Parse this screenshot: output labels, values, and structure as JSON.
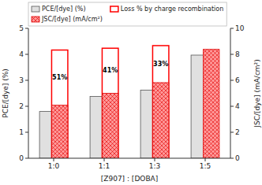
{
  "chart_data": {
    "type": "bar",
    "categories": [
      "1:0",
      "1:1",
      "1:3",
      "1:5"
    ],
    "series": [
      {
        "name": "PCE/[dye] (%)",
        "color": "#e0e0e0",
        "values": [
          1.8,
          2.38,
          2.62,
          3.97
        ]
      },
      {
        "name": "JSC/[dye] (mA/cm²)",
        "color": "#ff9999",
        "axis": "y2",
        "values": [
          4.08,
          5.0,
          5.82,
          8.38
        ]
      },
      {
        "name": "Loss % by charge recombination",
        "color": "#ff0000",
        "axis": "y2",
        "values": [
          8.33,
          8.47,
          8.67,
          null
        ],
        "loss_percents": [
          {
            "value": 51,
            "label": "51%"
          },
          {
            "value": 41,
            "label": "41%"
          },
          {
            "value": 33,
            "label": "33%"
          },
          null
        ]
      }
    ],
    "xlabel": "[Z907] : [DOBA]",
    "ylabel": "PCE/[dye] (%)",
    "y2label": "JSC/[dye] (mA/cm²)",
    "ylim": [
      0,
      5
    ],
    "yticks": [
      0,
      1,
      2,
      3,
      4,
      5
    ],
    "y2lim": [
      0,
      10
    ],
    "y2ticks": [
      0,
      2,
      4,
      6,
      8,
      10
    ],
    "legend": "upper left"
  }
}
